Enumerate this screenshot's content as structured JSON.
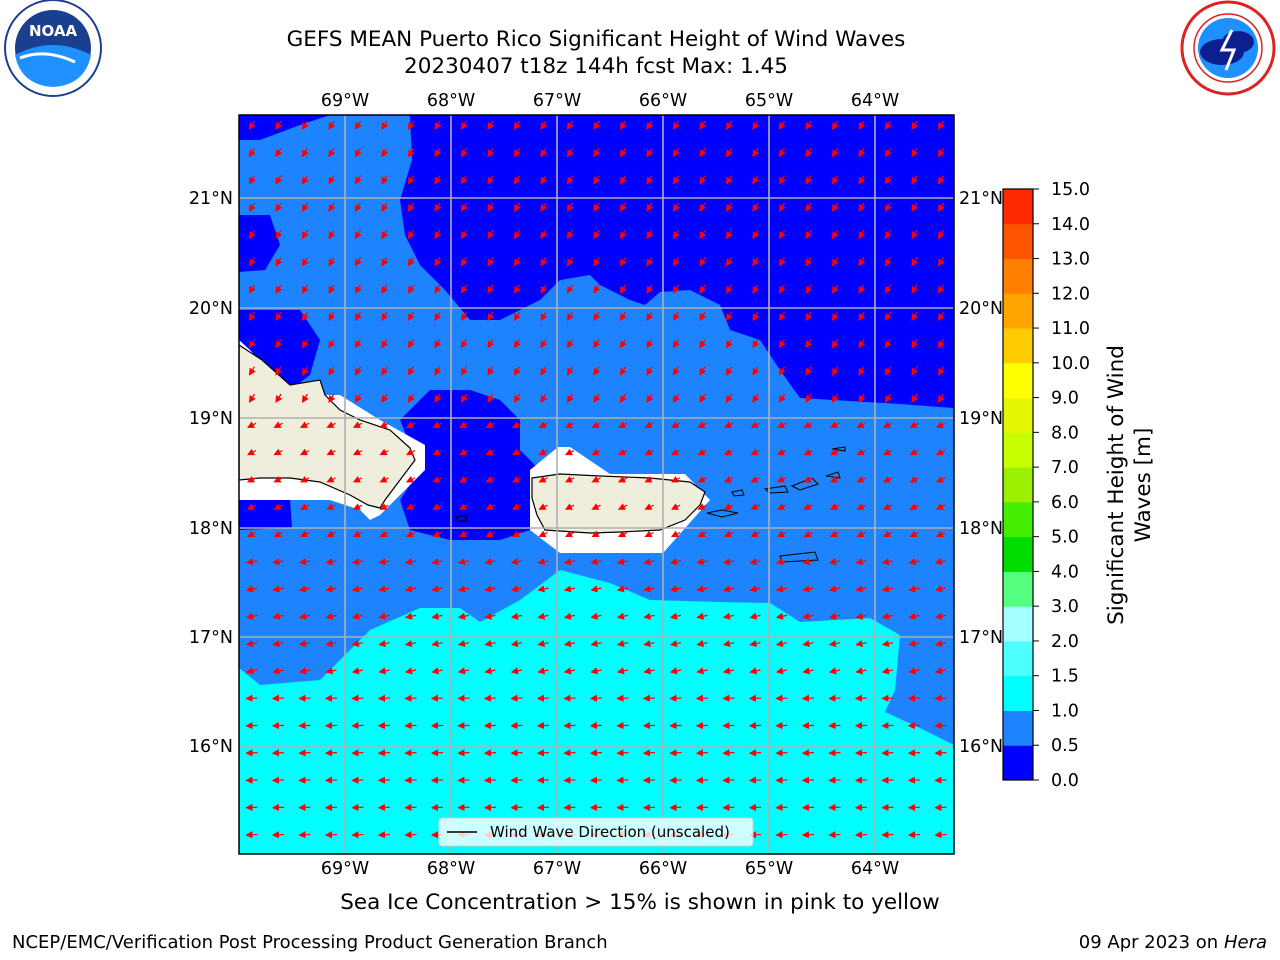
{
  "title": {
    "line1": "GEFS MEAN Puerto Rico Significant Height of Wind Waves",
    "line2": "20230407 t18z 144h fcst   Max: 1.45"
  },
  "logos": {
    "left": {
      "name": "noaa-logo",
      "text": "NOAA"
    },
    "right": {
      "name": "nws-logo",
      "text": "NATIONAL WEATHER SERVICE"
    }
  },
  "map": {
    "lon_labels": [
      "69°W",
      "68°W",
      "67°W",
      "66°W",
      "65°W",
      "64°W"
    ],
    "lat_labels": [
      "21°N",
      "20°N",
      "19°N",
      "18°N",
      "17°N",
      "16°N"
    ],
    "legend": "Wind Wave Direction (unscaled)",
    "colors": {
      "land": "#efeedd",
      "level_0_0_5": "#0000ff",
      "level_0_5_1_0": "#1e83ff",
      "level_1_0_1_5": "#00ffff",
      "vector": "#ff0000"
    },
    "arrows": [
      {
        "region": "north",
        "direction": "southwest"
      },
      {
        "region": "south",
        "direction": "west"
      }
    ]
  },
  "colorbar": {
    "label_line1": "Significant Height of Wind",
    "label_line2": "Waves [m]",
    "ticks": [
      "0.0",
      "0.5",
      "1.0",
      "1.5",
      "2.0",
      "3.0",
      "4.0",
      "5.0",
      "6.0",
      "7.0",
      "8.0",
      "9.0",
      "10.0",
      "11.0",
      "12.0",
      "13.0",
      "14.0",
      "15.0"
    ],
    "colors": [
      "#0000ff",
      "#1e83ff",
      "#00ffff",
      "#4dffff",
      "#a6ffff",
      "#55ff7f",
      "#00dd00",
      "#44ee00",
      "#9af000",
      "#c8ff00",
      "#e6f500",
      "#ffff00",
      "#ffcc00",
      "#ffa500",
      "#ff8000",
      "#ff5500",
      "#ff2a00",
      "#ff0000"
    ]
  },
  "caption": "Sea Ice Concentration > 15% is shown in pink to yellow",
  "footer": {
    "left": "NCEP/EMC/Verification Post Processing Product Generation Branch",
    "right_prefix": "09 Apr 2023 on ",
    "right_host": "Hera"
  }
}
